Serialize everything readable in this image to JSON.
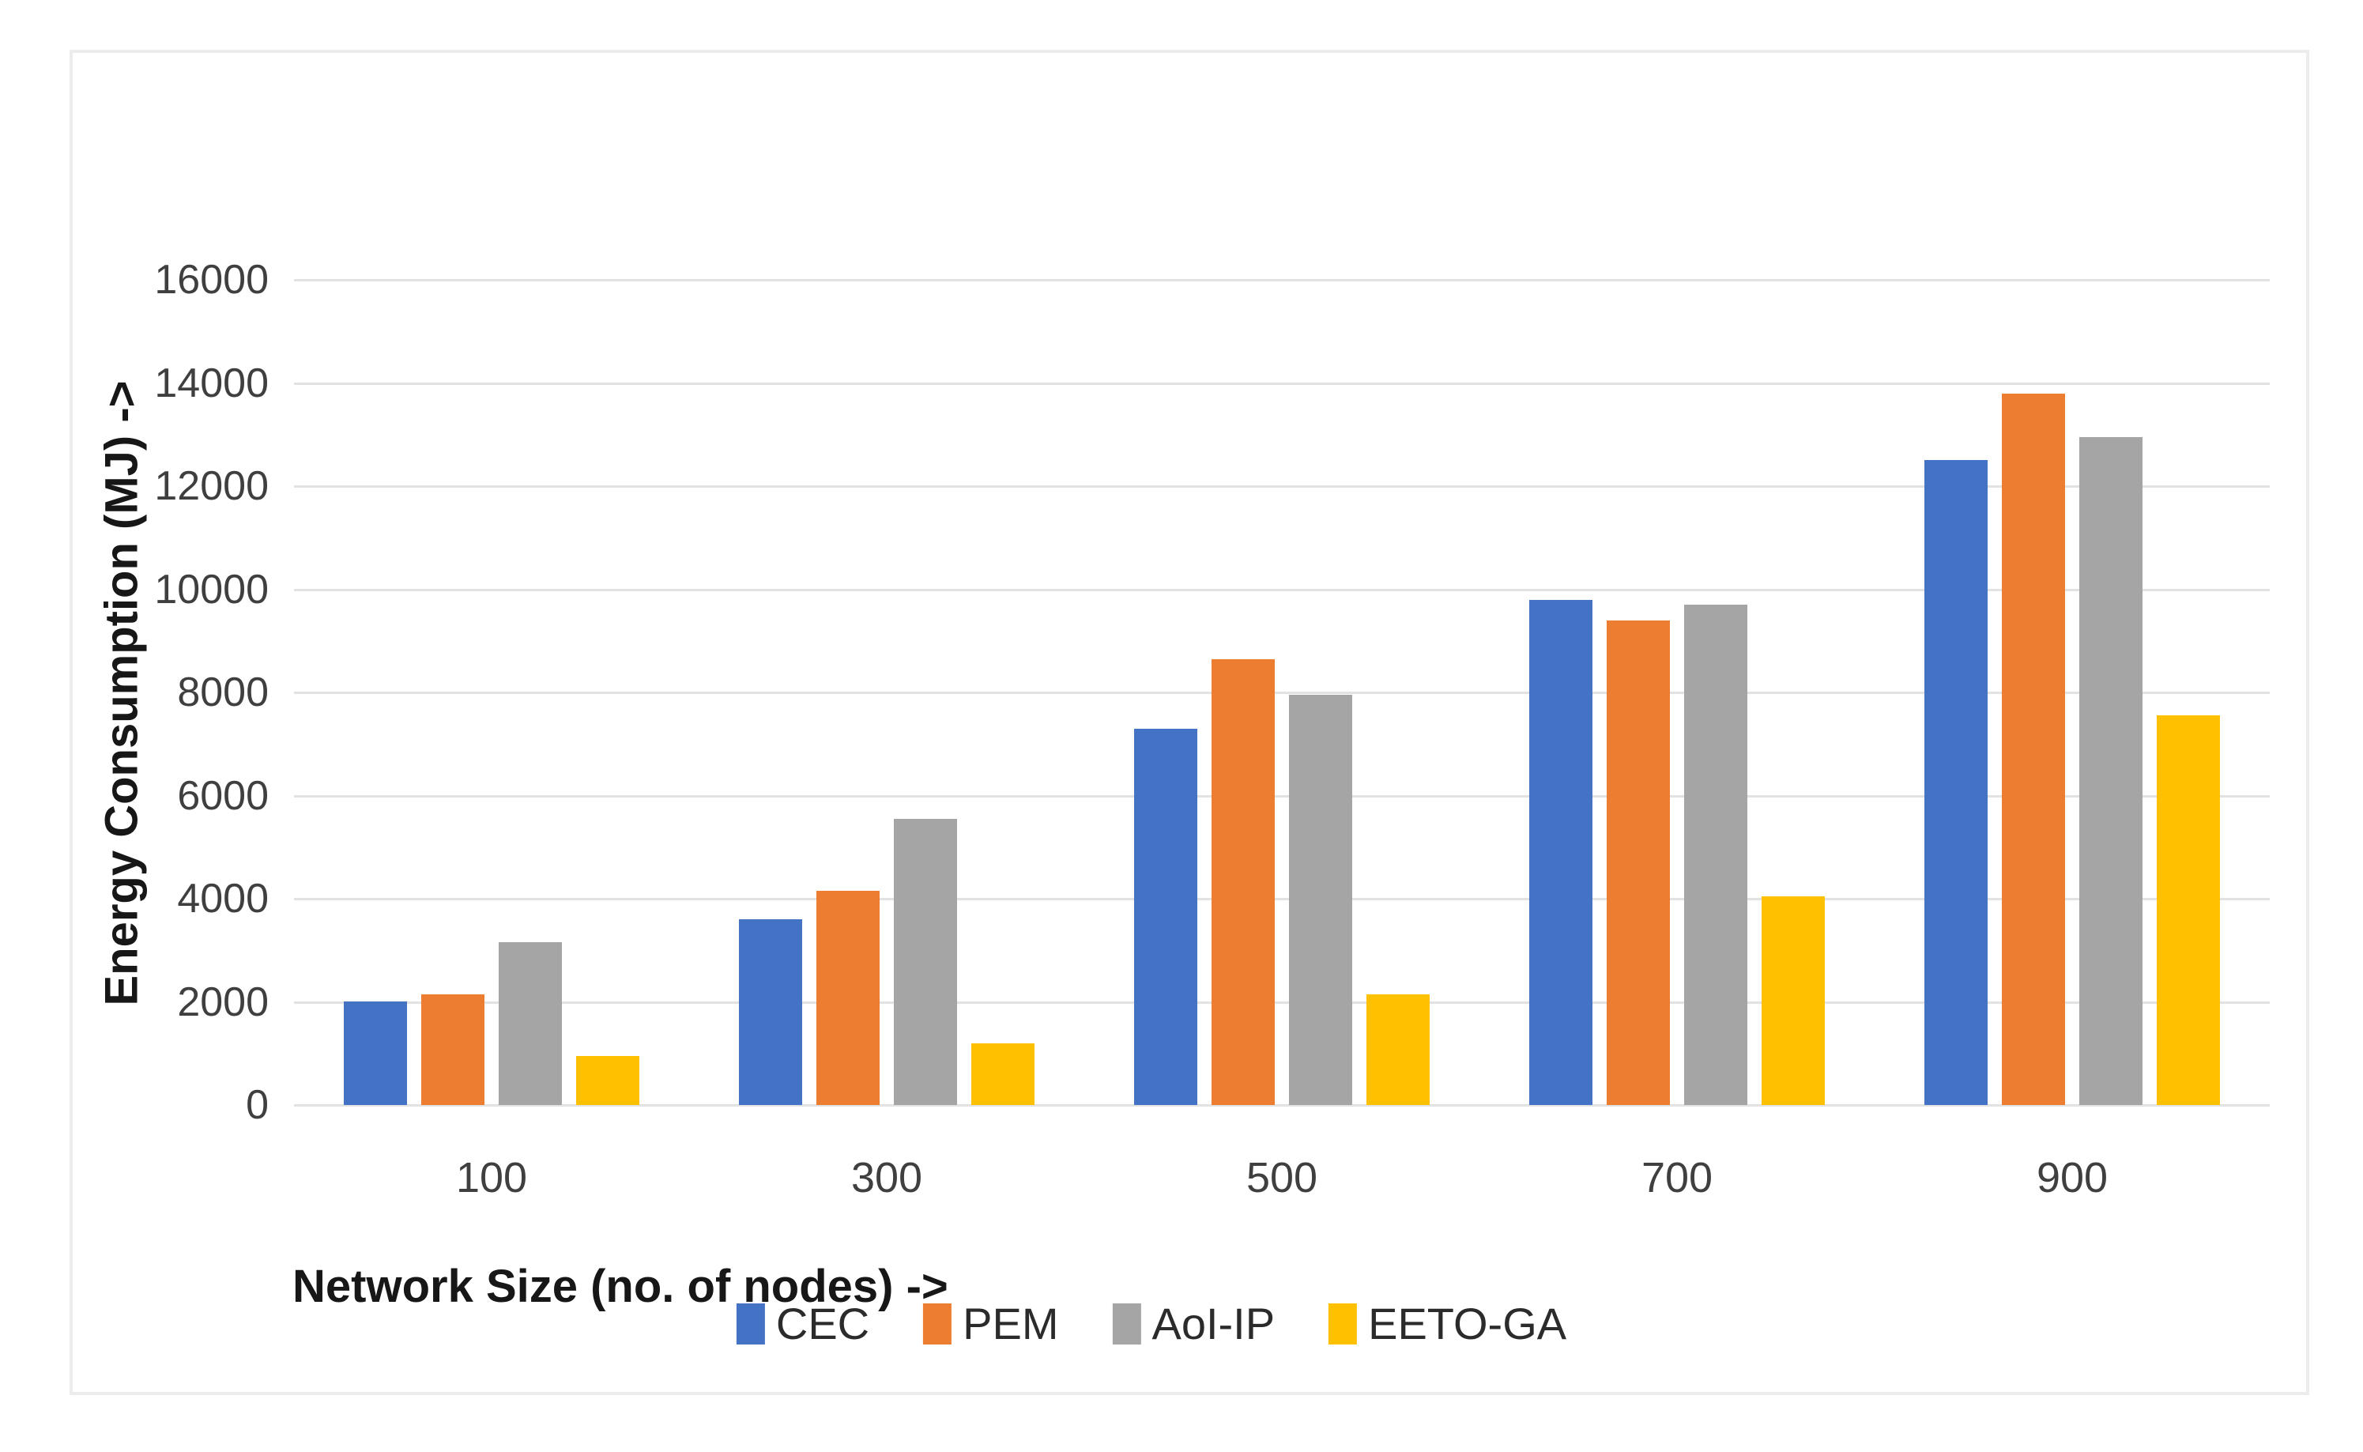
{
  "chart_data": {
    "type": "bar",
    "title": "",
    "xlabel": "Network Size (no. of nodes) ->",
    "ylabel": "Energy Consumption (MJ) ->",
    "categories": [
      "100",
      "300",
      "500",
      "700",
      "900"
    ],
    "series": [
      {
        "name": "CEC",
        "color": "#4472C4",
        "values": [
          2000,
          3600,
          7300,
          9800,
          12500
        ]
      },
      {
        "name": "PEM",
        "color": "#ED7D31",
        "values": [
          2150,
          4150,
          8650,
          9400,
          13800
        ]
      },
      {
        "name": "AoI-IP",
        "color": "#A5A5A5",
        "values": [
          3150,
          5550,
          7950,
          9700,
          12950
        ]
      },
      {
        "name": "EETO-GA",
        "color": "#FFC000",
        "values": [
          950,
          1200,
          2150,
          4050,
          7550
        ]
      }
    ],
    "ylim": [
      0,
      16000
    ],
    "ytick_step": 2000,
    "yticks": [
      0,
      2000,
      4000,
      6000,
      8000,
      10000,
      12000,
      14000,
      16000
    ],
    "grid": true,
    "legend_position": "bottom",
    "gridline_color": "#e2e2e2",
    "background_color": "#ffffff",
    "border_color": "#ececec"
  }
}
